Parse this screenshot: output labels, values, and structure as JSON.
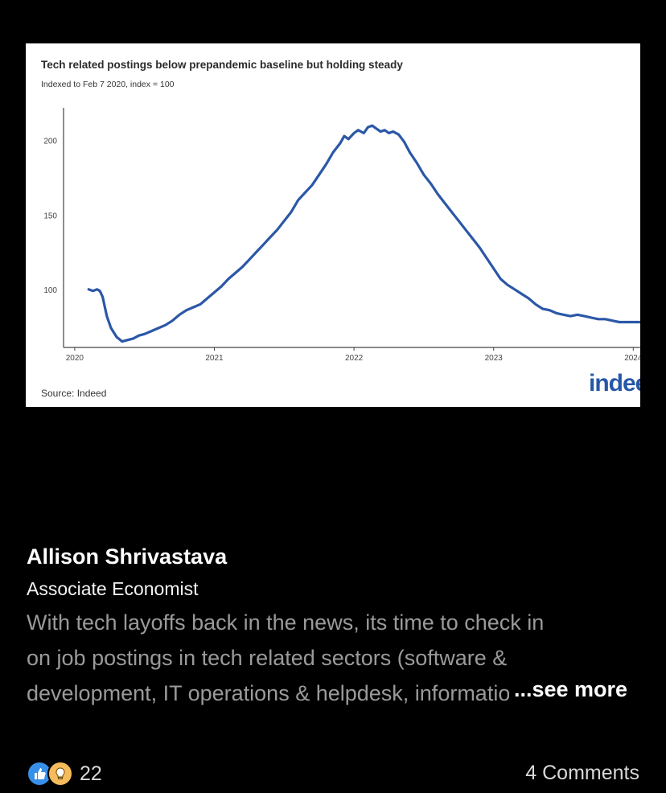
{
  "post": {
    "image": {
      "chart_title": "Tech related postings below prepandemic baseline but holding steady",
      "chart_subtitle": "Indexed to Feb 7 2020, index = 100",
      "source": "Source: Indeed",
      "logo_text": "indeed"
    },
    "author_name": "Allison Shrivastava",
    "author_title": "Associate Economist",
    "text_lines": [
      "With tech layoffs back in the news, its time to check in",
      "on job postings in tech related sectors (software &",
      "development, IT operations & helpdesk, information"
    ],
    "see_more": "...see more",
    "reaction_icons": [
      "like-icon",
      "insightful-icon"
    ],
    "reaction_count": "22",
    "comments": "4 Comments",
    "colors": {
      "line": "#2b57a7",
      "background": "#000000"
    }
  },
  "chart_data": {
    "type": "line",
    "title": "Tech related postings below prepandemic baseline but holding steady",
    "subtitle": "Indexed to Feb 7 2020, index = 100",
    "xlabel": "",
    "ylabel": "",
    "x_ticks": [
      "2020",
      "2021",
      "2022",
      "2023",
      "2024"
    ],
    "y_ticks": [
      100,
      150,
      200
    ],
    "xlim": [
      2019.92,
      2024.05
    ],
    "ylim": [
      61,
      222
    ],
    "grid": false,
    "legend": "none",
    "series": [
      {
        "x": [
          2020.1,
          2020.13,
          2020.16,
          2020.18,
          2020.2,
          2020.23,
          2020.26,
          2020.3,
          2020.34,
          2020.38,
          2020.42,
          2020.46,
          2020.5,
          2020.55,
          2020.6,
          2020.65,
          2020.7,
          2020.75,
          2020.8,
          2020.85,
          2020.9,
          2020.95,
          2021.0,
          2021.05,
          2021.1,
          2021.15,
          2021.2,
          2021.25,
          2021.3,
          2021.35,
          2021.4,
          2021.45,
          2021.5,
          2021.55,
          2021.6,
          2021.65,
          2021.7,
          2021.75,
          2021.8,
          2021.85,
          2021.9,
          2021.93,
          2021.96,
          2022.0,
          2022.03,
          2022.07,
          2022.1,
          2022.13,
          2022.16,
          2022.19,
          2022.22,
          2022.25,
          2022.28,
          2022.32,
          2022.36,
          2022.4,
          2022.45,
          2022.5,
          2022.55,
          2022.6,
          2022.65,
          2022.7,
          2022.75,
          2022.8,
          2022.85,
          2022.9,
          2022.95,
          2023.0,
          2023.05,
          2023.1,
          2023.15,
          2023.2,
          2023.25,
          2023.3,
          2023.35,
          2023.4,
          2023.45,
          2023.5,
          2023.55,
          2023.6,
          2023.65,
          2023.7,
          2023.75,
          2023.8,
          2023.85,
          2023.9,
          2023.95,
          2024.0,
          2024.05
        ],
        "values": [
          100,
          99,
          100,
          99,
          95,
          82,
          74,
          68,
          65,
          66,
          67,
          69,
          70,
          72,
          74,
          76,
          79,
          83,
          86,
          88,
          90,
          94,
          98,
          102,
          107,
          111,
          115,
          120,
          125,
          130,
          135,
          140,
          146,
          152,
          160,
          165,
          170,
          177,
          184,
          192,
          198,
          203,
          201,
          205,
          207,
          205,
          209,
          210,
          208,
          206,
          207,
          205,
          206,
          204,
          199,
          192,
          185,
          177,
          171,
          164,
          158,
          152,
          146,
          140,
          134,
          128,
          121,
          114,
          107,
          103,
          100,
          97,
          94,
          90,
          87,
          86,
          84,
          83,
          82,
          83,
          82,
          81,
          80,
          80,
          79,
          78,
          78,
          78,
          78
        ]
      }
    ]
  }
}
